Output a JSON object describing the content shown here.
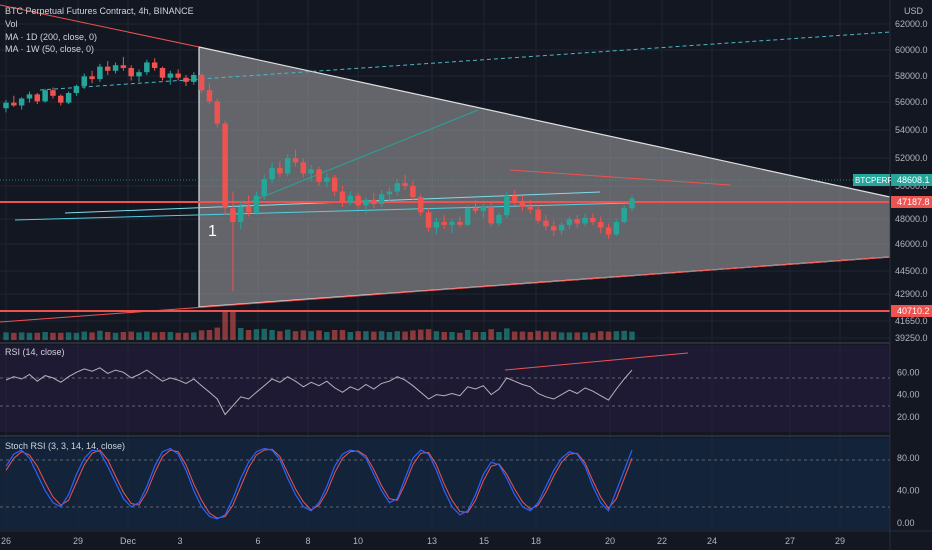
{
  "header": {
    "title": "BTC Perpetual Futures Contract, 4h, BINANCE",
    "vol_label": "Vol",
    "ma1_label": "MA · 1D (200, close, 0)",
    "ma2_label": "MA · 1W (50, close, 0)"
  },
  "rsi": {
    "label": "RSI (14, close)",
    "ticks": [
      "60.00",
      "40.00",
      "20.00"
    ]
  },
  "stoch": {
    "label": "Stoch RSI (3, 3, 14, 14, close)",
    "ticks": [
      "80.00",
      "40.00",
      "0.00"
    ]
  },
  "price_axis": {
    "currency": "USD",
    "ticks": [
      "62000.0",
      "60000.0",
      "58000.0",
      "56000.0",
      "54000.0",
      "52000.0",
      "50000.0",
      "48000.0",
      "46000.0",
      "44500.0",
      "42900.0",
      "41650.0",
      "39250.0"
    ]
  },
  "badges": {
    "symbol": "BTCPERP",
    "last_price": "48608.1",
    "support": "47187.8",
    "low_line": "40710.2"
  },
  "annotation": {
    "marker": "1"
  },
  "time_axis": {
    "labels": [
      "26",
      "29",
      "Dec",
      "3",
      "6",
      "8",
      "10",
      "13",
      "15",
      "18",
      "20",
      "22",
      "24",
      "27",
      "29"
    ]
  },
  "colors": {
    "background": "#131722",
    "up": "#26a69a",
    "down": "#ef5350",
    "triangle": "#c5c5c5",
    "cyan": "#4dd0e1",
    "rsi_line": "#b2b5be",
    "stoch_k": "#2962ff",
    "stoch_d": "#ef5350"
  },
  "chart_data": {
    "type": "candlestick",
    "title": "BTC Perpetual Futures Contract, 4h, BINANCE",
    "ylim": [
      38500,
      63000
    ],
    "key_levels": [
      47187.8,
      40710.2
    ],
    "last_price": 48608.1,
    "series": [
      {
        "name": "BTCPERP",
        "values": [
          [
            55200,
            55800,
            54900,
            55600
          ],
          [
            55600,
            56100,
            55300,
            55400
          ],
          [
            55400,
            56000,
            55100,
            55900
          ],
          [
            55900,
            56400,
            55600,
            56200
          ],
          [
            56200,
            56300,
            55500,
            55700
          ],
          [
            55700,
            56600,
            55600,
            56500
          ],
          [
            56500,
            56700,
            55900,
            56100
          ],
          [
            56100,
            56200,
            55400,
            55600
          ],
          [
            55600,
            56400,
            55500,
            56300
          ],
          [
            56300,
            56900,
            56100,
            56800
          ],
          [
            56800,
            57700,
            56600,
            57500
          ],
          [
            57500,
            57900,
            57000,
            57300
          ],
          [
            57300,
            58400,
            57100,
            58200
          ],
          [
            58200,
            58600,
            57600,
            57900
          ],
          [
            57900,
            58500,
            57700,
            58300
          ],
          [
            58300,
            58900,
            57900,
            58100
          ],
          [
            58100,
            58300,
            57200,
            57500
          ],
          [
            57500,
            58000,
            57100,
            57800
          ],
          [
            57800,
            58700,
            57600,
            58500
          ],
          [
            58500,
            58800,
            57900,
            58100
          ],
          [
            58100,
            58200,
            57200,
            57400
          ],
          [
            57400,
            57900,
            56900,
            57700
          ],
          [
            57700,
            58000,
            57200,
            57400
          ],
          [
            57400,
            57600,
            56800,
            57100
          ],
          [
            57100,
            57800,
            56900,
            57600
          ],
          [
            57600,
            57700,
            56300,
            56500
          ],
          [
            56500,
            57000,
            55500,
            55700
          ],
          [
            55700,
            55900,
            53800,
            54100
          ],
          [
            54100,
            54300,
            47500,
            48000
          ],
          [
            48000,
            49200,
            42000,
            47000
          ],
          [
            47000,
            48500,
            46500,
            48100
          ],
          [
            48100,
            48900,
            47400,
            47700
          ],
          [
            47700,
            49200,
            47500,
            48900
          ],
          [
            48900,
            50400,
            48600,
            50100
          ],
          [
            50100,
            51300,
            49800,
            50900
          ],
          [
            50900,
            51400,
            50200,
            50500
          ],
          [
            50500,
            51900,
            50300,
            51600
          ],
          [
            51600,
            52200,
            51000,
            51300
          ],
          [
            51300,
            51600,
            50200,
            50500
          ],
          [
            50500,
            51100,
            49900,
            50800
          ],
          [
            50800,
            51000,
            49600,
            49900
          ],
          [
            49900,
            50500,
            49500,
            50200
          ],
          [
            50200,
            50400,
            48900,
            49200
          ],
          [
            49200,
            49600,
            48100,
            48400
          ],
          [
            48400,
            49200,
            48200,
            48900
          ],
          [
            48900,
            49100,
            47900,
            48200
          ],
          [
            48200,
            48800,
            47600,
            48600
          ],
          [
            48600,
            49100,
            48000,
            48300
          ],
          [
            48300,
            49300,
            48100,
            49000
          ],
          [
            49000,
            49500,
            48500,
            49200
          ],
          [
            49200,
            50100,
            48900,
            49800
          ],
          [
            49800,
            50400,
            49300,
            49600
          ],
          [
            49600,
            50000,
            48600,
            48800
          ],
          [
            48800,
            49000,
            47400,
            47700
          ],
          [
            47700,
            48000,
            46300,
            46600
          ],
          [
            46600,
            47300,
            46100,
            47000
          ],
          [
            47000,
            47500,
            46500,
            46800
          ],
          [
            46800,
            47200,
            46200,
            47000
          ],
          [
            47000,
            47400,
            46600,
            46800
          ],
          [
            46800,
            48200,
            46700,
            48000
          ],
          [
            48000,
            48600,
            47600,
            47800
          ],
          [
            47800,
            48300,
            47300,
            48100
          ],
          [
            48100,
            48400,
            46700,
            46900
          ],
          [
            46900,
            47700,
            46700,
            47500
          ],
          [
            47500,
            49200,
            47300,
            48900
          ],
          [
            48900,
            49300,
            48200,
            48500
          ],
          [
            48500,
            48900,
            47800,
            48100
          ],
          [
            48100,
            48600,
            47600,
            47900
          ],
          [
            47900,
            48200,
            46900,
            47100
          ],
          [
            47100,
            47500,
            46400,
            46700
          ],
          [
            46700,
            47100,
            46000,
            46400
          ],
          [
            46400,
            47000,
            46100,
            46800
          ],
          [
            46800,
            47400,
            46500,
            47200
          ],
          [
            47200,
            47500,
            46600,
            46900
          ],
          [
            46900,
            47600,
            46700,
            47300
          ],
          [
            47300,
            47600,
            46800,
            47000
          ],
          [
            47000,
            47400,
            46200,
            46600
          ],
          [
            46600,
            46900,
            45800,
            46100
          ],
          [
            46100,
            47200,
            46000,
            47000
          ],
          [
            47000,
            48200,
            46900,
            48000
          ],
          [
            48000,
            48900,
            47800,
            48700
          ]
        ]
      }
    ],
    "rsi": {
      "name": "RSI (14, close)",
      "ylim": [
        10,
        80
      ],
      "values": [
        53,
        56,
        54,
        58,
        52,
        57,
        55,
        51,
        56,
        60,
        63,
        61,
        64,
        59,
        62,
        60,
        55,
        58,
        62,
        57,
        52,
        55,
        53,
        50,
        54,
        48,
        42,
        36,
        22,
        30,
        38,
        36,
        42,
        48,
        54,
        51,
        56,
        52,
        47,
        51,
        48,
        52,
        46,
        42,
        47,
        44,
        49,
        45,
        50,
        52,
        56,
        53,
        48,
        42,
        36,
        40,
        39,
        41,
        39,
        47,
        45,
        48,
        40,
        45,
        55,
        52,
        49,
        47,
        41,
        38,
        36,
        40,
        44,
        41,
        46,
        43,
        39,
        35,
        45,
        54,
        62
      ]
    },
    "stoch_rsi": {
      "name": "Stoch RSI (3, 3, 14, 14, close)",
      "ylim": [
        -5,
        100
      ],
      "k": [
        70,
        85,
        90,
        80,
        60,
        40,
        25,
        20,
        35,
        60,
        80,
        90,
        88,
        70,
        50,
        30,
        20,
        25,
        45,
        70,
        88,
        92,
        85,
        65,
        40,
        20,
        8,
        5,
        10,
        30,
        55,
        75,
        88,
        92,
        90,
        78,
        55,
        35,
        20,
        15,
        25,
        45,
        70,
        85,
        90,
        88,
        80,
        60,
        40,
        25,
        30,
        55,
        80,
        90,
        85,
        65,
        40,
        20,
        10,
        15,
        35,
        60,
        75,
        72,
        55,
        35,
        20,
        15,
        25,
        45,
        65,
        80,
        88,
        85,
        70,
        45,
        25,
        15,
        40,
        65,
        90
      ],
      "d": [
        65,
        80,
        88,
        84,
        70,
        50,
        32,
        22,
        28,
        50,
        72,
        86,
        90,
        78,
        58,
        38,
        24,
        22,
        38,
        62,
        82,
        90,
        88,
        72,
        48,
        28,
        12,
        6,
        8,
        22,
        45,
        68,
        84,
        90,
        91,
        82,
        62,
        42,
        26,
        16,
        22,
        38,
        62,
        80,
        88,
        89,
        83,
        66,
        46,
        30,
        28,
        48,
        72,
        86,
        87,
        72,
        48,
        28,
        14,
        13,
        28,
        52,
        70,
        73,
        60,
        42,
        26,
        17,
        22,
        38,
        58,
        75,
        85,
        86,
        74,
        52,
        32,
        18,
        30,
        55,
        80
      ]
    }
  }
}
